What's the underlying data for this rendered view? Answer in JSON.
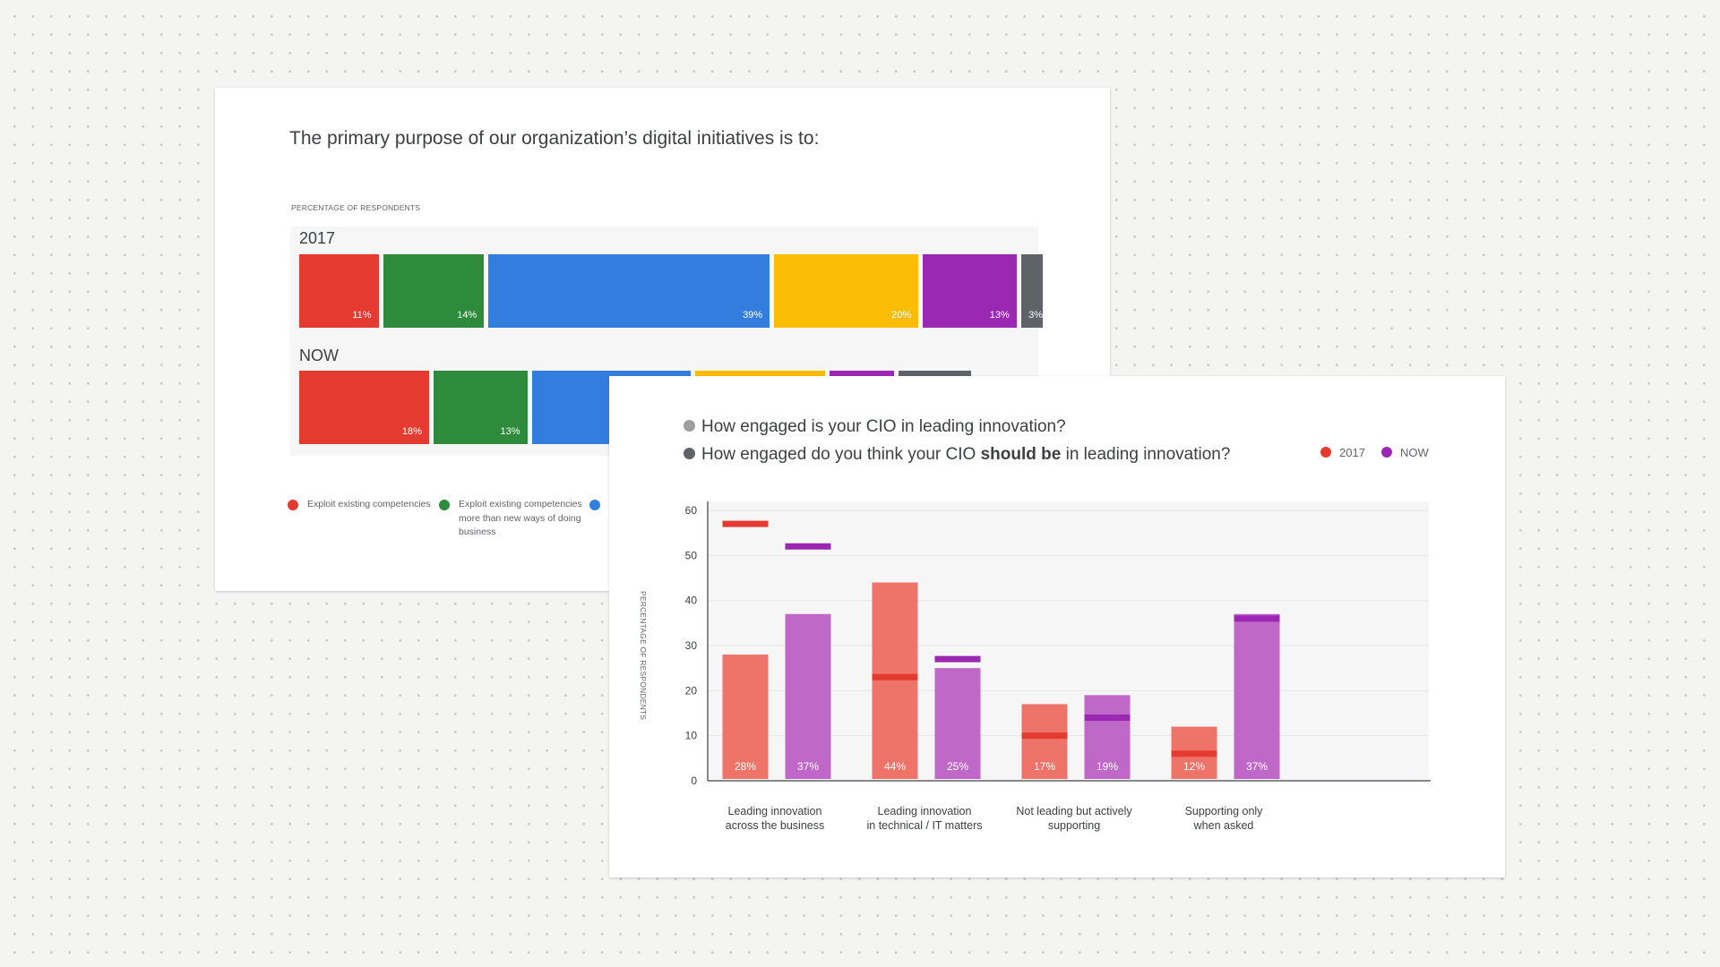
{
  "card1": {
    "title": "The primary purpose of our organization’s digital initiatives is to:",
    "axis_caption": "PERCENTAGE OF RESPONDENTS",
    "rows": [
      {
        "label": "2017",
        "segments": [
          {
            "label": "11%",
            "color": "#e53a2f"
          },
          {
            "label": "14%",
            "color": "#2e8b3c"
          },
          {
            "label": "39%",
            "color": "#337ddf"
          },
          {
            "label": "20%",
            "color": "#fbbc04"
          },
          {
            "label": "13%",
            "color": "#9b28b3"
          },
          {
            "label": "3%",
            "color": "#5f6368"
          }
        ]
      },
      {
        "label": "NOW",
        "segments": [
          {
            "label": "18%",
            "color": "#e53a2f"
          },
          {
            "label": "13%",
            "color": "#2e8b3c"
          },
          {
            "label": "",
            "color": "#337ddf"
          },
          {
            "label": "",
            "color": "#fbbc04"
          },
          {
            "label": "",
            "color": "#9b28b3"
          },
          {
            "label": "",
            "color": "#5f6368"
          }
        ]
      }
    ],
    "legend": [
      {
        "label": "Exploit existing competencies",
        "color": "#e53a2f"
      },
      {
        "label": "Exploit existing competencies more than new ways of doing business",
        "color": "#2e8b3c"
      },
      {
        "label": "",
        "color": "#337ddf"
      }
    ]
  },
  "card2": {
    "question1": "How engaged is your CIO in leading innovation?",
    "question2_before": "How engaged do you think your CIO ",
    "question2_bold": "should be",
    "question2_after": " in leading innovation?",
    "question1_dot_color": "#9e9e9e",
    "question2_dot_color": "#5f6368",
    "legend": [
      {
        "label": "2017",
        "color": "#e53a2f"
      },
      {
        "label": "NOW",
        "color": "#9b28b3"
      }
    ],
    "y_axis_label": "PERCENTAGE OF RESPONDENTS"
  },
  "chart_data": [
    {
      "type": "bar",
      "orientation": "horizontal-stacked",
      "title": "The primary purpose of our organization’s digital initiatives is to:",
      "ylabel": "PERCENTAGE OF RESPONDENTS",
      "categories": [
        "2017",
        "NOW"
      ],
      "series": [
        {
          "name": "Exploit existing competencies",
          "values": [
            11,
            18
          ]
        },
        {
          "name": "Exploit existing competencies more than new ways of doing business",
          "values": [
            14,
            13
          ]
        },
        {
          "values": [
            39,
            22
          ]
        },
        {
          "values": [
            20,
            18
          ]
        },
        {
          "values": [
            13,
            9
          ]
        },
        {
          "values": [
            3,
            10
          ]
        }
      ]
    },
    {
      "type": "bar",
      "categories": [
        "Leading innovation across the business",
        "Leading innovation in technical / IT matters",
        "Not leading but actively supporting",
        "Supporting only when asked"
      ],
      "category_lines": [
        [
          "Leading innovation",
          "across the business"
        ],
        [
          "Leading innovation",
          "in technical / IT matters"
        ],
        [
          "Not leading but actively",
          "supporting"
        ],
        [
          "Supporting only",
          "when asked"
        ]
      ],
      "series": [
        {
          "name": "2017",
          "color": "#ee7469",
          "marker_color": "#e53a2f",
          "values": [
            28,
            44,
            17,
            12
          ],
          "labels": [
            "28%",
            "44%",
            "17%",
            "12%"
          ],
          "should_be": [
            57,
            23,
            10,
            6
          ]
        },
        {
          "name": "NOW",
          "color": "#bf68c8",
          "marker_color": "#9b28b3",
          "values": [
            37,
            25,
            19,
            37
          ],
          "labels": [
            "37%",
            "25%",
            "19%",
            "37%"
          ],
          "should_be": [
            52,
            27,
            14,
            36
          ]
        }
      ],
      "ylabel": "PERCENTAGE OF RESPONDENTS",
      "ylim": [
        0,
        60
      ],
      "yticks": [
        0,
        10,
        20,
        30,
        40,
        50,
        60
      ],
      "grid": true
    }
  ]
}
